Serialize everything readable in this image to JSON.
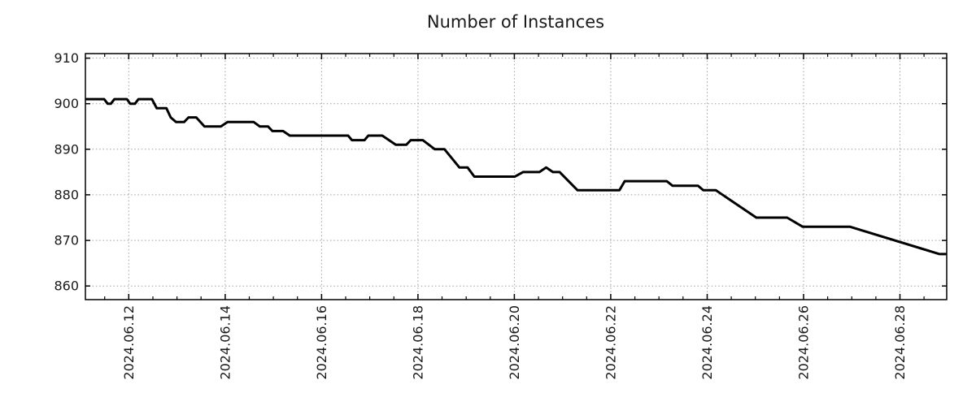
{
  "page": {
    "background": "#ffffff"
  },
  "chart_data": {
    "type": "line",
    "title": "Number of Instances",
    "legend": "none",
    "grid": {
      "style": "dotted",
      "color": "#9e9e9e"
    },
    "colors": {
      "line": "#000000",
      "axis": "#000000",
      "text": "#1a1a1a",
      "background": "#ffffff"
    },
    "x_axis": {
      "unit": "date",
      "range": [
        0.1,
        17.97
      ],
      "tick_positions": [
        1,
        3,
        5,
        7,
        9,
        11,
        13,
        15,
        17
      ],
      "tick_labels": [
        "2024.06.12",
        "2024.06.14",
        "2024.06.16",
        "2024.06.18",
        "2024.06.20",
        "2024.06.22",
        "2024.06.24",
        "2024.06.26",
        "2024.06.28"
      ],
      "minor_tick_interval": 0.5,
      "label_rotation_deg": -90
    },
    "y_axis": {
      "range": [
        857,
        911
      ],
      "tick_positions": [
        860,
        870,
        880,
        890,
        900,
        910
      ],
      "tick_labels": [
        "860",
        "870",
        "880",
        "890",
        "900",
        "910"
      ]
    },
    "series": [
      {
        "name": "Number of Instances",
        "color": "#000000",
        "line_width": 3,
        "points": [
          [
            0.1,
            901
          ],
          [
            0.49,
            901
          ],
          [
            0.56,
            900
          ],
          [
            0.63,
            900
          ],
          [
            0.7,
            901
          ],
          [
            0.96,
            901
          ],
          [
            1.03,
            900
          ],
          [
            1.13,
            900
          ],
          [
            1.2,
            901
          ],
          [
            1.48,
            901
          ],
          [
            1.58,
            899
          ],
          [
            1.78,
            899
          ],
          [
            1.87,
            897
          ],
          [
            1.98,
            896
          ],
          [
            2.15,
            896
          ],
          [
            2.24,
            897
          ],
          [
            2.4,
            897
          ],
          [
            2.57,
            895
          ],
          [
            2.91,
            895
          ],
          [
            3.05,
            896
          ],
          [
            3.59,
            896
          ],
          [
            3.72,
            895
          ],
          [
            3.89,
            895
          ],
          [
            3.98,
            894
          ],
          [
            4.2,
            894
          ],
          [
            4.34,
            893
          ],
          [
            5.55,
            893
          ],
          [
            5.63,
            892
          ],
          [
            5.89,
            892
          ],
          [
            5.97,
            893
          ],
          [
            6.26,
            893
          ],
          [
            6.54,
            891
          ],
          [
            6.76,
            891
          ],
          [
            6.85,
            892
          ],
          [
            7.1,
            892
          ],
          [
            7.35,
            890
          ],
          [
            7.55,
            890
          ],
          [
            7.86,
            886
          ],
          [
            8.03,
            886
          ],
          [
            8.17,
            884
          ],
          [
            9.01,
            884
          ],
          [
            9.18,
            885
          ],
          [
            9.52,
            885
          ],
          [
            9.66,
            886
          ],
          [
            9.8,
            885
          ],
          [
            9.94,
            885
          ],
          [
            10.31,
            881
          ],
          [
            11.18,
            881
          ],
          [
            11.29,
            883
          ],
          [
            12.16,
            883
          ],
          [
            12.28,
            882
          ],
          [
            12.81,
            882
          ],
          [
            12.92,
            881
          ],
          [
            13.18,
            881
          ],
          [
            14.02,
            875
          ],
          [
            14.66,
            875
          ],
          [
            14.98,
            873
          ],
          [
            15.96,
            873
          ],
          [
            17.82,
            867
          ],
          [
            17.97,
            867
          ]
        ]
      }
    ]
  }
}
